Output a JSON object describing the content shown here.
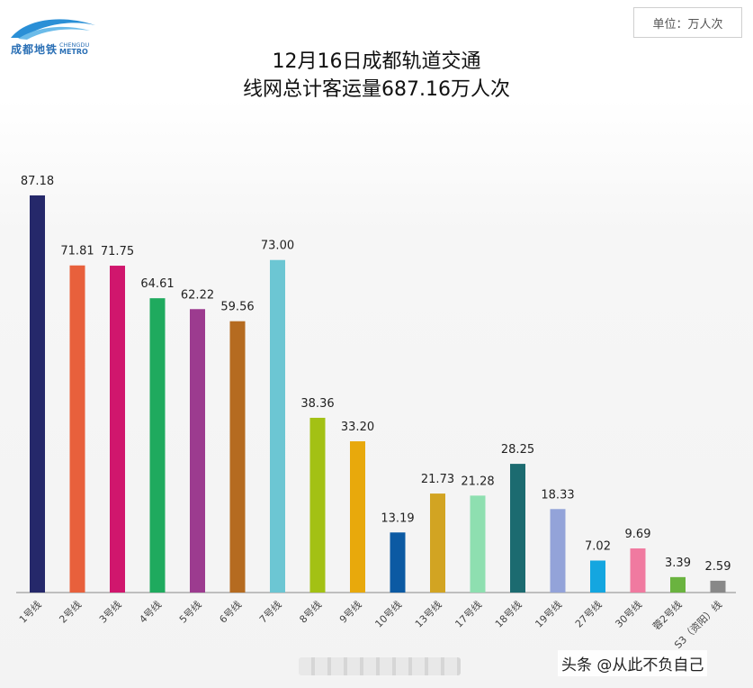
{
  "logo": {
    "cn": "成都地铁",
    "en1": "CHENGDU",
    "en2": "METRO"
  },
  "unit_label": "单位：万人次",
  "title_line1": "12月16日成都轨道交通",
  "title_line2": "线网总计客运量687.16万人次",
  "watermark": "头条 @从此不负自己",
  "chart_data": {
    "type": "bar",
    "title": "12月16日成都轨道交通 线网总计客运量687.16万人次",
    "unit": "万人次",
    "categories": [
      "1号线",
      "2号线",
      "3号线",
      "4号线",
      "5号线",
      "6号线",
      "7号线",
      "8号线",
      "9号线",
      "10号线",
      "13号线",
      "17号线",
      "18号线",
      "19号线",
      "27号线",
      "30号线",
      "蓉2号线",
      "S3（资阳）线"
    ],
    "values": [
      87.18,
      71.81,
      71.75,
      64.61,
      62.22,
      59.56,
      73.0,
      38.36,
      33.2,
      13.19,
      21.73,
      21.28,
      28.25,
      18.33,
      7.02,
      9.69,
      3.39,
      2.59
    ],
    "value_labels": [
      "87.18",
      "71.81",
      "71.75",
      "64.61",
      "62.22",
      "59.56",
      "73.00",
      "38.36",
      "33.20",
      "13.19",
      "21.73",
      "21.28",
      "28.25",
      "18.33",
      "7.02",
      "9.69",
      "3.39",
      "2.59"
    ],
    "colors": [
      "#25286a",
      "#e8603c",
      "#d0166d",
      "#1faa5e",
      "#9c3b8f",
      "#b56b20",
      "#6cc6d3",
      "#a3c114",
      "#e8a90c",
      "#0c5aa3",
      "#d2a422",
      "#8edfb0",
      "#1c6b70",
      "#93a3d9",
      "#14a6e0",
      "#f07aa0",
      "#6ab33f",
      "#888888"
    ],
    "ylim": [
      0,
      95
    ],
    "grid": false,
    "legend": "none"
  }
}
